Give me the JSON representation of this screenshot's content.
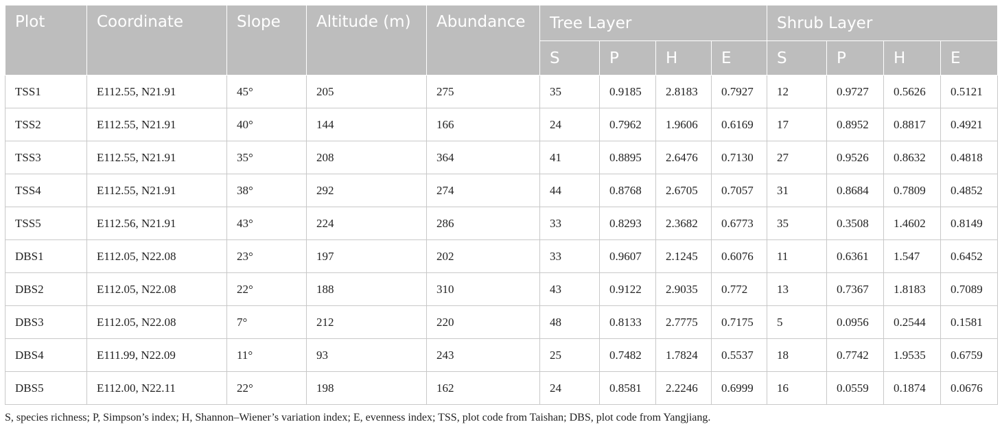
{
  "table": {
    "headers": {
      "plot": "Plot",
      "coordinate": "Coordinate",
      "slope": "Slope",
      "altitude": "Altitude (m)",
      "abundance": "Abundance",
      "tree_layer": "Tree Layer",
      "shrub_layer": "Shrub Layer",
      "sub": [
        "S",
        "P",
        "H",
        "E",
        "S",
        "P",
        "H",
        "E"
      ]
    },
    "rows": [
      [
        "TSS1",
        "E112.55, N21.91",
        "45°",
        "205",
        "275",
        "35",
        "0.9185",
        "2.8183",
        "0.7927",
        "12",
        "0.9727",
        "0.5626",
        "0.5121"
      ],
      [
        "TSS2",
        "E112.55, N21.91",
        "40°",
        "144",
        "166",
        "24",
        "0.7962",
        "1.9606",
        "0.6169",
        "17",
        "0.8952",
        "0.8817",
        "0.4921"
      ],
      [
        "TSS3",
        "E112.55, N21.91",
        "35°",
        "208",
        "364",
        "41",
        "0.8895",
        "2.6476",
        "0.7130",
        "27",
        "0.9526",
        "0.8632",
        "0.4818"
      ],
      [
        "TSS4",
        "E112.55, N21.91",
        "38°",
        "292",
        "274",
        "44",
        "0.8768",
        "2.6705",
        "0.7057",
        "31",
        "0.8684",
        "0.7809",
        "0.4852"
      ],
      [
        "TSS5",
        "E112.56, N21.91",
        "43°",
        "224",
        "286",
        "33",
        "0.8293",
        "2.3682",
        "0.6773",
        "35",
        "0.3508",
        "1.4602",
        "0.8149"
      ],
      [
        "DBS1",
        "E112.05, N22.08",
        "23°",
        "197",
        "202",
        "33",
        "0.9607",
        "2.1245",
        "0.6076",
        "11",
        "0.6361",
        "1.547",
        "0.6452"
      ],
      [
        "DBS2",
        "E112.05, N22.08",
        "22°",
        "188",
        "310",
        "43",
        "0.9122",
        "2.9035",
        "0.772",
        "13",
        "0.7367",
        "1.8183",
        "0.7089"
      ],
      [
        "DBS3",
        "E112.05, N22.08",
        "7°",
        "212",
        "220",
        "48",
        "0.8133",
        "2.7775",
        "0.7175",
        "5",
        "0.0956",
        "0.2544",
        "0.1581"
      ],
      [
        "DBS4",
        "E111.99, N22.09",
        "11°",
        "93",
        "243",
        "25",
        "0.7482",
        "1.7824",
        "0.5537",
        "18",
        "0.7742",
        "1.9535",
        "0.6759"
      ],
      [
        "DBS5",
        "E112.00, N22.11",
        "22°",
        "198",
        "162",
        "24",
        "0.8581",
        "2.2246",
        "0.6999",
        "16",
        "0.0559",
        "0.1874",
        "0.0676"
      ]
    ]
  },
  "footnote": "S, species richness; P, Simpson’s index; H, Shannon–Wiener’s variation index; E, evenness index; TSS, plot code from Taishan; DBS, plot code from Yangjiang."
}
